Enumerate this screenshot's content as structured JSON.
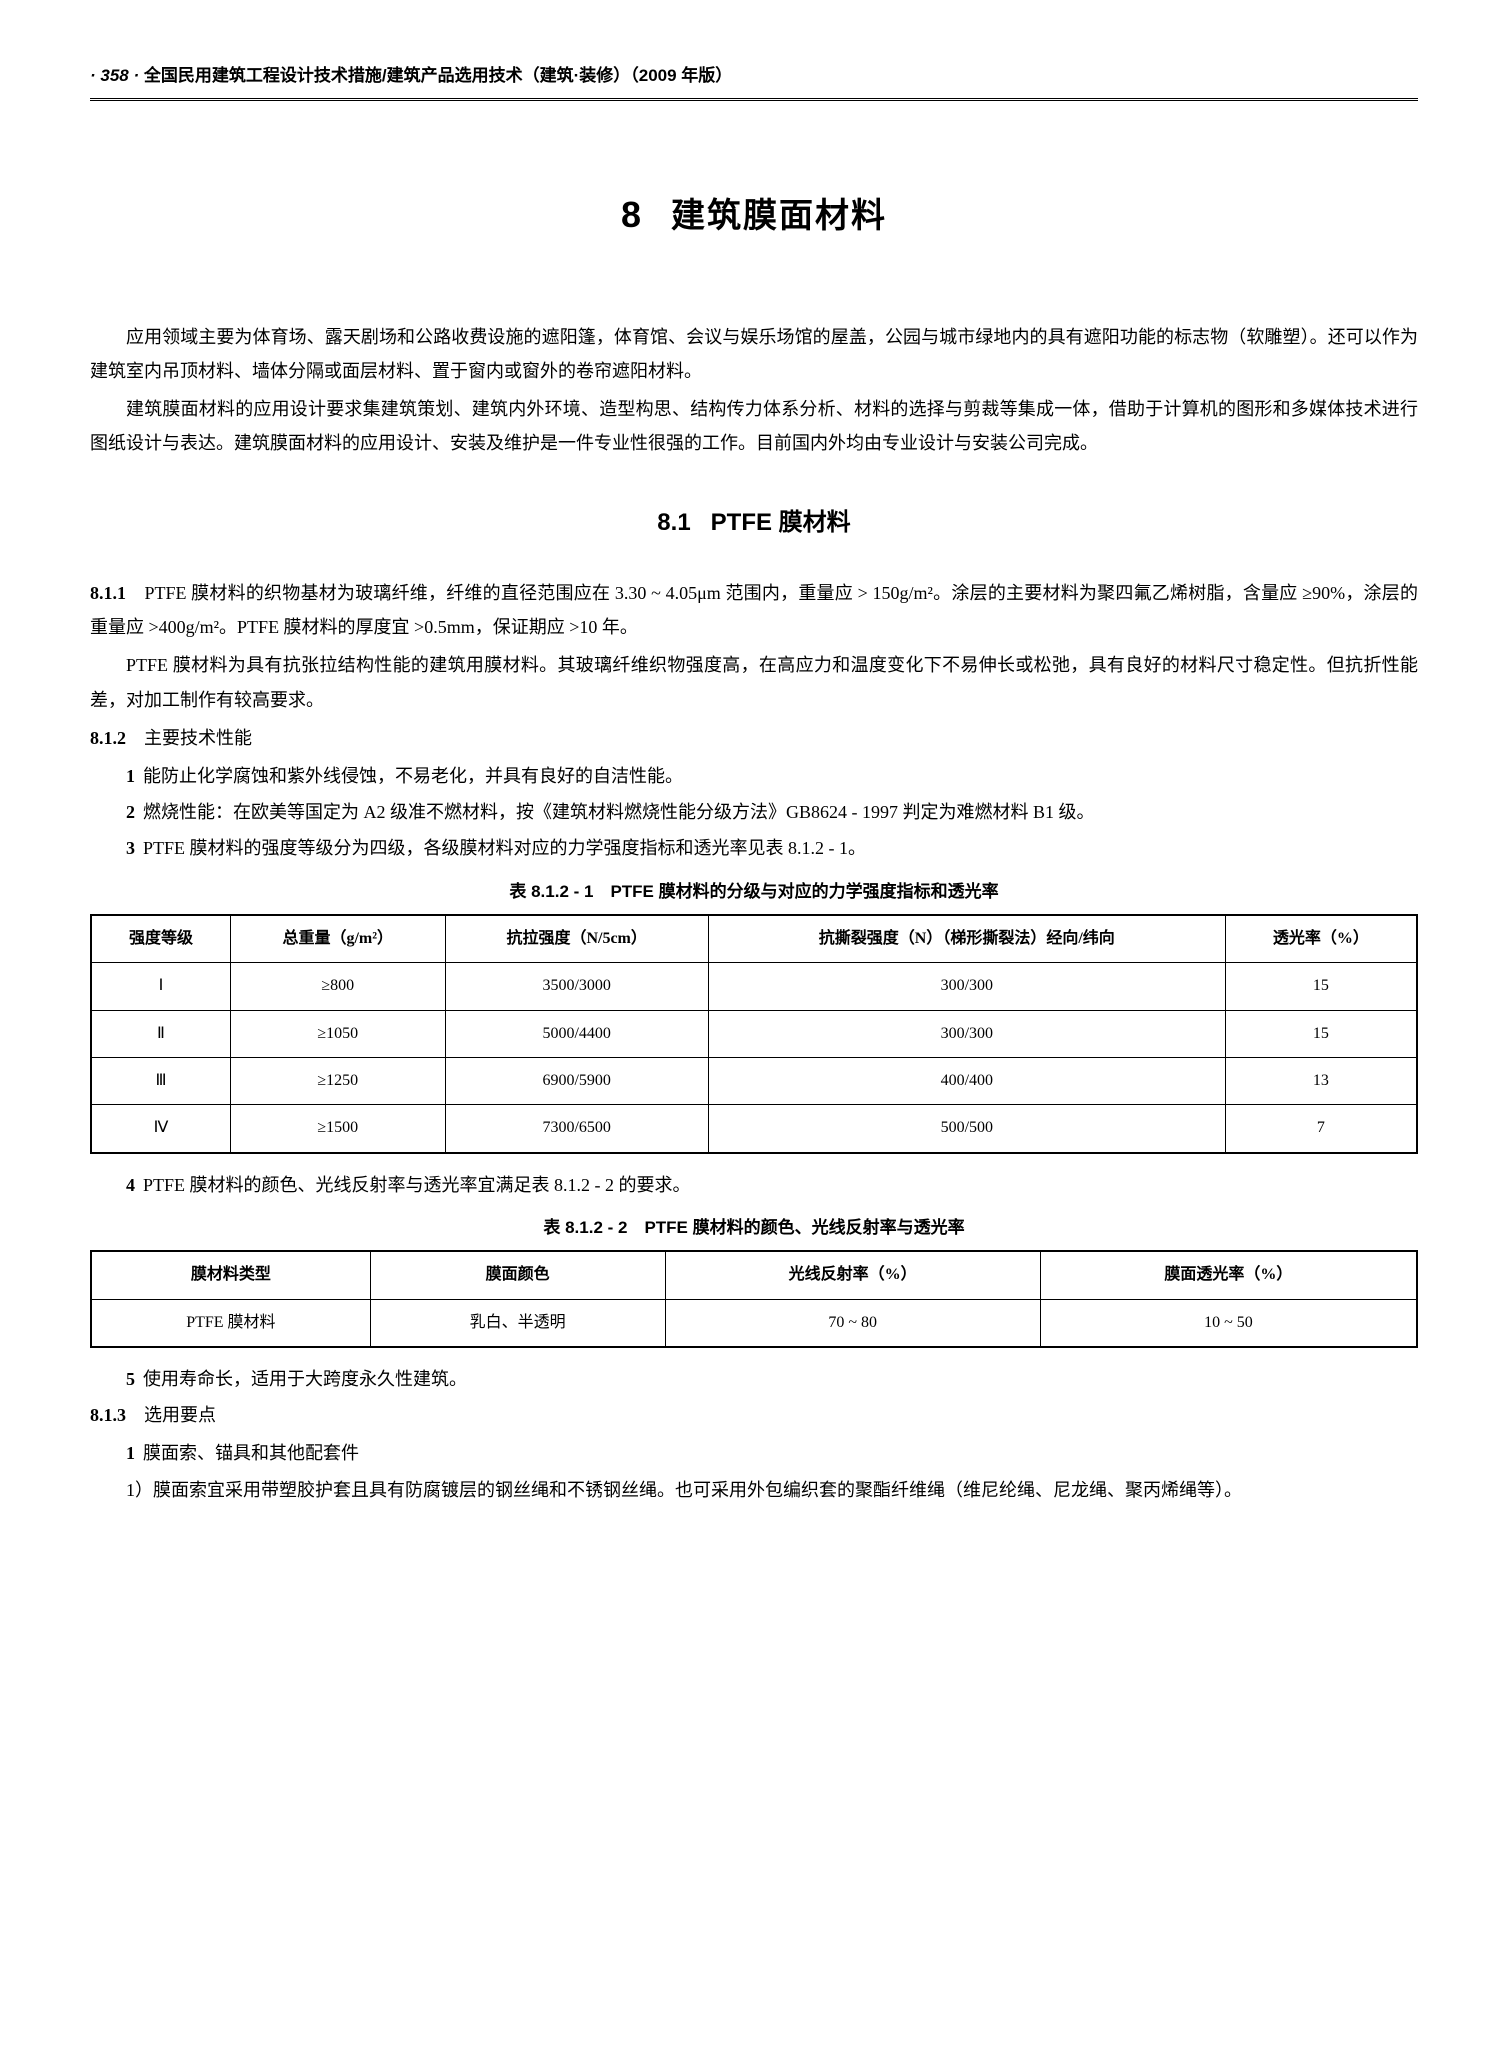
{
  "header": {
    "page_num": "· 358 ·",
    "title": "全国民用建筑工程设计技术措施/建筑产品选用技术（建筑·装修）（2009 年版）"
  },
  "chapter": {
    "num": "8",
    "title": "建筑膜面材料"
  },
  "intro": {
    "p1": "应用领域主要为体育场、露天剧场和公路收费设施的遮阳篷，体育馆、会议与娱乐场馆的屋盖，公园与城市绿地内的具有遮阳功能的标志物（软雕塑）。还可以作为建筑室内吊顶材料、墙体分隔或面层材料、置于窗内或窗外的卷帘遮阳材料。",
    "p2": "建筑膜面材料的应用设计要求集建筑策划、建筑内外环境、造型构思、结构传力体系分析、材料的选择与剪裁等集成一体，借助于计算机的图形和多媒体技术进行图纸设计与表达。建筑膜面材料的应用设计、安装及维护是一件专业性很强的工作。目前国内外均由专业设计与安装公司完成。"
  },
  "section": {
    "num": "8.1",
    "title": "PTFE 膜材料"
  },
  "c811": {
    "head": "8.1.1",
    "p1": "PTFE 膜材料的织物基材为玻璃纤维，纤维的直径范围应在 3.30 ~ 4.05μm 范围内，重量应 > 150g/m²。涂层的主要材料为聚四氟乙烯树脂，含量应 ≥90%，涂层的重量应 >400g/m²。PTFE 膜材料的厚度宜 >0.5mm，保证期应 >10 年。",
    "p2": "PTFE 膜材料为具有抗张拉结构性能的建筑用膜材料。其玻璃纤维织物强度高，在高应力和温度变化下不易伸长或松弛，具有良好的材料尺寸稳定性。但抗折性能差，对加工制作有较高要求。"
  },
  "c812": {
    "head": "8.1.2",
    "title": "主要技术性能",
    "i1": "能防止化学腐蚀和紫外线侵蚀，不易老化，并具有良好的自洁性能。",
    "i2": "燃烧性能：在欧美等国定为 A2 级准不燃材料，按《建筑材料燃烧性能分级方法》GB8624 - 1997 判定为难燃材料 B1 级。",
    "i3": "PTFE 膜材料的强度等级分为四级，各级膜材料对应的力学强度指标和透光率见表 8.1.2 - 1。",
    "i4": "PTFE 膜材料的颜色、光线反射率与透光率宜满足表 8.1.2 - 2 的要求。",
    "i5": "使用寿命长，适用于大跨度永久性建筑。"
  },
  "table1": {
    "caption": "表 8.1.2 - 1　PTFE 膜材料的分级与对应的力学强度指标和透光率",
    "headers": [
      "强度等级",
      "总重量（g/m²）",
      "抗拉强度（N/5cm）",
      "抗撕裂强度（N）（梯形撕裂法）经向/纬向",
      "透光率（%）"
    ],
    "rows": [
      [
        "Ⅰ",
        "≥800",
        "3500/3000",
        "300/300",
        "15"
      ],
      [
        "Ⅱ",
        "≥1050",
        "5000/4400",
        "300/300",
        "15"
      ],
      [
        "Ⅲ",
        "≥1250",
        "6900/5900",
        "400/400",
        "13"
      ],
      [
        "Ⅳ",
        "≥1500",
        "7300/6500",
        "500/500",
        "7"
      ]
    ]
  },
  "table2": {
    "caption": "表 8.1.2 - 2　PTFE 膜材料的颜色、光线反射率与透光率",
    "headers": [
      "膜材料类型",
      "膜面颜色",
      "光线反射率（%）",
      "膜面透光率（%）"
    ],
    "rows": [
      [
        "PTFE 膜材料",
        "乳白、半透明",
        "70 ~ 80",
        "10 ~ 50"
      ]
    ]
  },
  "c813": {
    "head": "8.1.3",
    "title": "选用要点",
    "i1": "膜面索、锚具和其他配套件",
    "i1_1": "1）膜面索宜采用带塑胶护套且具有防腐镀层的钢丝绳和不锈钢丝绳。也可采用外包编织套的聚酯纤维绳（维尼纶绳、尼龙绳、聚丙烯绳等）。"
  }
}
